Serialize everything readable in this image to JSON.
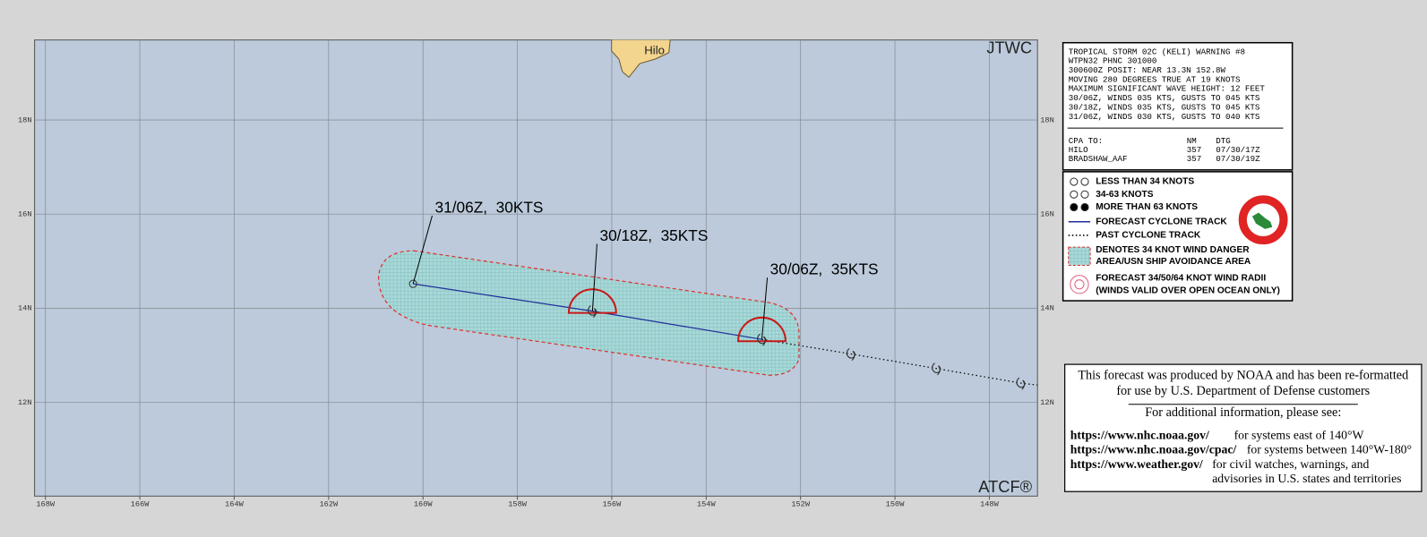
{
  "map": {
    "logo": "JTWC",
    "footer": "ATCF®",
    "place": "Hilo",
    "lonlim": [
      -168.23,
      -146.98
    ],
    "latlim": [
      10.01,
      19.7
    ],
    "lonticks": [
      {
        "value": -168,
        "label": "168W"
      },
      {
        "value": -166,
        "label": "166W"
      },
      {
        "value": -164,
        "label": "164W"
      },
      {
        "value": -162,
        "label": "162W"
      },
      {
        "value": -160,
        "label": "160W"
      },
      {
        "value": -158,
        "label": "158W"
      },
      {
        "value": -156,
        "label": "156W"
      },
      {
        "value": -154,
        "label": "154W"
      },
      {
        "value": -152,
        "label": "152W"
      },
      {
        "value": -150,
        "label": "150W"
      },
      {
        "value": -148,
        "label": "148W"
      }
    ],
    "latticks": [
      {
        "value": 12,
        "label": "12N"
      },
      {
        "value": 14,
        "label": "14N"
      },
      {
        "value": 16,
        "label": "16N"
      },
      {
        "value": 18,
        "label": "18N"
      }
    ],
    "forecast_track": [
      {
        "label": "30/06Z,  35KTS",
        "lat": 13.34,
        "lon": -152.82,
        "wind_radii": true
      },
      {
        "label": "30/18Z,  35KTS",
        "lat": 13.94,
        "lon": -156.41,
        "wind_radii": true
      },
      {
        "label": "31/06Z,  30KTS",
        "lat": 14.52,
        "lon": -160.21,
        "wind_radii": false
      }
    ],
    "past_track": {
      "lat": [
        13.34,
        13.03,
        12.72,
        12.41
      ],
      "lon": [
        -152.82,
        -150.93,
        -149.12,
        -147.33
      ]
    }
  },
  "warning": {
    "lines": [
      "TROPICAL STORM 02C (KELI) WARNING #8",
      "WTPN32 PHNC 301000",
      "300600Z POSIT: NEAR 13.3N 152.8W",
      "MOVING 280 DEGREES TRUE AT 19 KNOTS",
      "MAXIMUM SIGNIFICANT WAVE HEIGHT: 12 FEET",
      "30/06Z, WINDS 035 KTS, GUSTS TO 045 KTS",
      "30/18Z, WINDS 035 KTS, GUSTS TO 045 KTS",
      "31/06Z, WINDS 030 KTS, GUSTS TO 040 KTS"
    ],
    "cpa_header": [
      "CPA TO:",
      "NM",
      "DTG"
    ],
    "cpa_rows": [
      [
        "HILO",
        "357",
        "07/30/17Z"
      ],
      [
        "BRADSHAW_AAF",
        "357",
        "07/30/19Z"
      ]
    ]
  },
  "legend": {
    "items": [
      "LESS THAN 34 KNOTS",
      "34-63 KNOTS",
      "MORE THAN 63 KNOTS",
      "FORECAST CYCLONE TRACK",
      "PAST CYCLONE TRACK",
      "DENOTES 34 KNOT WIND DANGER",
      "AREA/USN SHIP AVOIDANCE AREA",
      "FORECAST 34/50/64 KNOT WIND RADII",
      "(WINDS VALID OVER OPEN OCEAN ONLY)"
    ]
  },
  "disclaimer": {
    "lines": [
      "This forecast was produced by NOAA and has been re-formatted",
      "for use by U.S. Department of Defense customers"
    ],
    "heading": "For additional information, please see:",
    "links": [
      {
        "url": "https://www.nhc.noaa.gov/",
        "text": "for systems east of 140°W"
      },
      {
        "url": "https://www.nhc.noaa.gov/cpac/",
        "text": "for systems between 140°W-180°"
      },
      {
        "url": "https://www.weather.gov/",
        "text": "for civil watches, warnings, and"
      }
    ],
    "last_line": "advisories in U.S. states and territories"
  }
}
